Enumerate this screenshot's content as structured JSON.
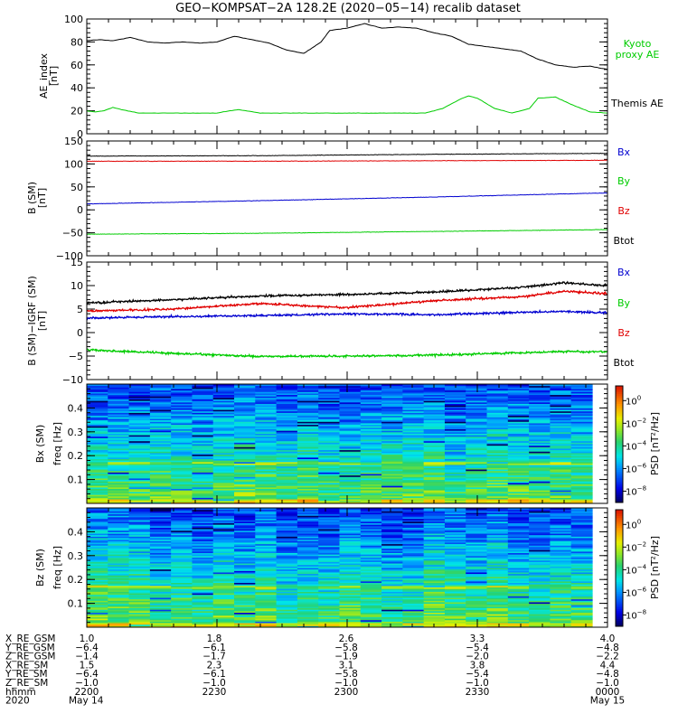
{
  "title": "GEO−KOMPSAT−2A 128.2E (2020−05−14) recalib dataset",
  "colors": {
    "black": "#000000",
    "red": "#e00000",
    "blue": "#0000d0",
    "green": "#00cc00"
  },
  "panels": {
    "ae": {
      "ylabel": "AE_index\n[nT]",
      "legend": [
        {
          "text": "Kyoto\nproxy AE",
          "color": "#00cc00"
        },
        {
          "text": "Themis AE",
          "color": "#000000"
        }
      ]
    },
    "b": {
      "ylabel": "B (SM)\n[nT]",
      "legend": [
        {
          "text": "Bx",
          "color": "#0000d0"
        },
        {
          "text": "By",
          "color": "#00cc00"
        },
        {
          "text": "Bz",
          "color": "#e00000"
        },
        {
          "text": "Btot",
          "color": "#000000"
        }
      ]
    },
    "dbi": {
      "ylabel": "B (SM)−IGRF (SM)\n[nT]",
      "legend": [
        {
          "text": "Bx",
          "color": "#0000d0"
        },
        {
          "text": "By",
          "color": "#00cc00"
        },
        {
          "text": "Bz",
          "color": "#e00000"
        },
        {
          "text": "Btot",
          "color": "#000000"
        }
      ]
    },
    "specx": {
      "ylabel1": "Bx (SM)",
      "ylabel2": "freq [Hz]",
      "cbar_label": "PSD [nT²/Hz]"
    },
    "specz": {
      "ylabel1": "Bz (SM)",
      "ylabel2": "freq [Hz]",
      "cbar_label": "PSD [nT²/Hz]"
    }
  },
  "ephemeris": {
    "rows": [
      {
        "label": "X_RE_GSM",
        "values": [
          "1.0",
          "1.8",
          "2.6",
          "3.3",
          "4.0"
        ]
      },
      {
        "label": "Y_RE_GSM",
        "values": [
          "−6.4",
          "−6.1",
          "−5.8",
          "−5.4",
          "−4.8"
        ]
      },
      {
        "label": "Z_RE_GSM",
        "values": [
          "−1.4",
          "−1.7",
          "−1.9",
          "−2.0",
          "−2.2"
        ]
      },
      {
        "label": "X_RE_SM",
        "values": [
          "1.5",
          "2.3",
          "3.1",
          "3.8",
          "4.4"
        ]
      },
      {
        "label": "Y_RE_SM",
        "values": [
          "−6.4",
          "−6.1",
          "−5.8",
          "−5.4",
          "−4.8"
        ]
      },
      {
        "label": "Z_RE_SM",
        "values": [
          "−1.0",
          "−1.0",
          "−1.0",
          "−1.0",
          "−1.0"
        ]
      },
      {
        "label": "hhmm",
        "values": [
          "2200",
          "2230",
          "2300",
          "2330",
          "0000"
        ]
      },
      {
        "label": "2020",
        "values": [
          "May 14",
          "",
          "",
          "",
          "May 15"
        ]
      }
    ]
  },
  "chart_data": [
    {
      "type": "line",
      "panel": "ae",
      "ylabel": "AE_index\n[nT]",
      "ylim": [
        0,
        100
      ],
      "yticks": [
        0,
        20,
        40,
        60,
        80,
        100
      ],
      "xlim": [
        0,
        120
      ],
      "x_unit": "minutes after 2020-05-14 22:00 UT",
      "series": [
        {
          "name": "Themis AE",
          "color": "#000000",
          "x": [
            0,
            3,
            6,
            10,
            14,
            18,
            22,
            26,
            30,
            34,
            38,
            42,
            46,
            50,
            54,
            56,
            60,
            64,
            68,
            72,
            76,
            80,
            84,
            88,
            92,
            96,
            100,
            104,
            108,
            112,
            116,
            120
          ],
          "y": [
            81,
            82,
            81,
            84,
            80,
            79,
            80,
            79,
            80,
            85,
            82,
            79,
            73,
            70,
            80,
            90,
            92,
            96,
            92,
            93,
            92,
            88,
            85,
            78,
            76,
            74,
            72,
            65,
            60,
            58,
            59,
            56
          ]
        },
        {
          "name": "Kyoto proxy AE",
          "color": "#00cc00",
          "x": [
            0,
            2,
            4,
            6,
            8,
            12,
            16,
            20,
            24,
            28,
            30,
            33,
            35,
            40,
            45,
            50,
            55,
            60,
            65,
            70,
            74,
            78,
            82,
            86,
            88,
            90,
            94,
            98,
            102,
            104,
            108,
            112,
            116,
            120
          ],
          "y": [
            20,
            19,
            20,
            23,
            21,
            18,
            18,
            18,
            18,
            18,
            18,
            20,
            21,
            18,
            18,
            18,
            18,
            18,
            18,
            18,
            18,
            18,
            22,
            30,
            33,
            31,
            22,
            18,
            22,
            31,
            32,
            25,
            19,
            18
          ]
        }
      ]
    },
    {
      "type": "line",
      "panel": "b",
      "ylabel": "B (SM)\n[nT]",
      "ylim": [
        -100,
        150
      ],
      "yticks": [
        -100,
        -50,
        0,
        50,
        100,
        150
      ],
      "xlim": [
        0,
        120
      ],
      "series": [
        {
          "name": "Btot",
          "color": "#000000",
          "x": [
            0,
            40,
            80,
            120
          ],
          "y": [
            117,
            118,
            121,
            123
          ]
        },
        {
          "name": "Bz",
          "color": "#e00000",
          "x": [
            0,
            40,
            80,
            120
          ],
          "y": [
            106,
            106,
            107,
            108
          ]
        },
        {
          "name": "Bx",
          "color": "#0000d0",
          "x": [
            0,
            40,
            80,
            120
          ],
          "y": [
            13,
            20,
            28,
            37
          ]
        },
        {
          "name": "By",
          "color": "#00cc00",
          "x": [
            0,
            40,
            80,
            120
          ],
          "y": [
            -53,
            -51,
            -47,
            -43
          ]
        }
      ]
    },
    {
      "type": "line",
      "panel": "dbi",
      "ylabel": "B (SM)−IGRF (SM)\n[nT]",
      "ylim": [
        -10,
        15
      ],
      "yticks": [
        -10,
        -5,
        0,
        5,
        10,
        15
      ],
      "xlim": [
        0,
        120
      ],
      "series": [
        {
          "name": "Btot",
          "color": "#000000",
          "x": [
            0,
            20,
            40,
            60,
            80,
            100,
            110,
            120
          ],
          "y": [
            6.3,
            7.0,
            7.8,
            8.1,
            8.6,
            9.6,
            10.6,
            10.0
          ]
        },
        {
          "name": "Bz",
          "color": "#e00000",
          "x": [
            0,
            20,
            40,
            60,
            80,
            100,
            110,
            120
          ],
          "y": [
            4.6,
            5.0,
            6.2,
            5.3,
            6.8,
            7.6,
            8.8,
            8.3
          ]
        },
        {
          "name": "Bx",
          "color": "#0000d0",
          "x": [
            0,
            20,
            40,
            60,
            80,
            100,
            110,
            120
          ],
          "y": [
            3.1,
            3.4,
            3.6,
            4.0,
            3.8,
            4.3,
            4.5,
            4.2
          ]
        },
        {
          "name": "By",
          "color": "#00cc00",
          "x": [
            0,
            20,
            40,
            60,
            80,
            100,
            110,
            120
          ],
          "y": [
            -3.7,
            -4.4,
            -5.1,
            -5.0,
            -4.8,
            -4.3,
            -4.0,
            -4.1
          ]
        }
      ]
    },
    {
      "type": "heatmap",
      "panel": "specx",
      "ylabel": "Bx (SM) freq [Hz]",
      "ylim": [
        0,
        0.5
      ],
      "yticks": [
        0.1,
        0.2,
        0.3,
        0.4
      ],
      "xlim": [
        0,
        120
      ],
      "colorbar": {
        "label": "PSD [nT²/Hz]",
        "log_range": [
          -9,
          1.3
        ],
        "ticks": [
          0,
          -2,
          -4,
          -6,
          -8
        ]
      }
    },
    {
      "type": "heatmap",
      "panel": "specz",
      "ylabel": "Bz (SM) freq [Hz]",
      "ylim": [
        0,
        0.5
      ],
      "yticks": [
        0.1,
        0.2,
        0.3,
        0.4
      ],
      "xlim": [
        0,
        120
      ],
      "colorbar": {
        "label": "PSD [nT²/Hz]",
        "log_range": [
          -9,
          1.3
        ],
        "ticks": [
          0,
          -2,
          -4,
          -6,
          -8
        ]
      }
    }
  ]
}
